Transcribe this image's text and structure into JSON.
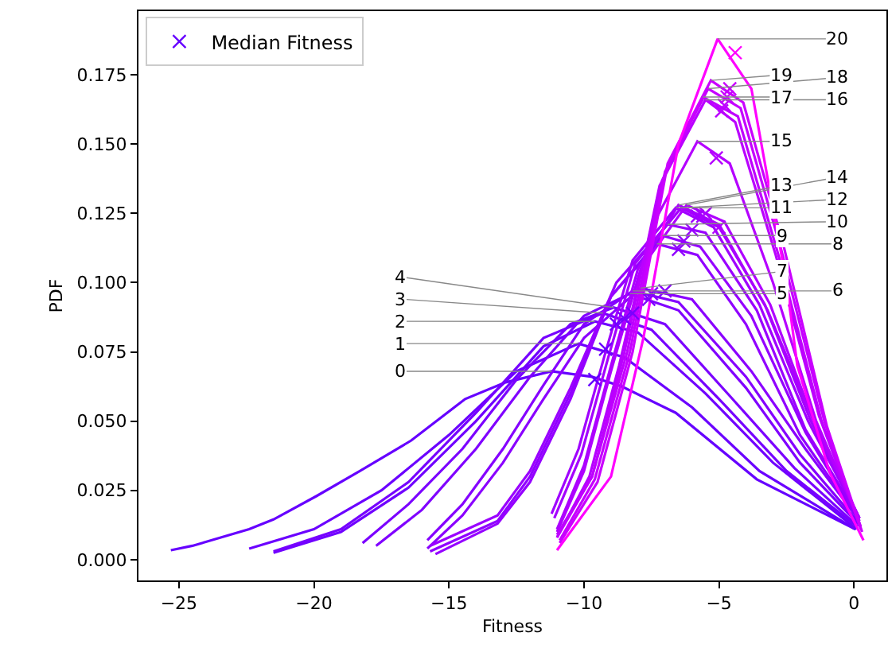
{
  "chart_data": {
    "type": "line",
    "xlabel": "Fitness",
    "ylabel": "PDF",
    "xlim": [
      -26.5,
      1.2
    ],
    "ylim": [
      -0.0075,
      0.198
    ],
    "xticks": [
      {
        "value": -25,
        "label": "−25"
      },
      {
        "value": -20,
        "label": "−20"
      },
      {
        "value": -15,
        "label": "−15"
      },
      {
        "value": -10,
        "label": "−10"
      },
      {
        "value": -5,
        "label": "−5"
      },
      0
    ],
    "yticks": [
      {
        "value": 0,
        "label": "0.000"
      },
      {
        "value": 0.025,
        "label": "0.025"
      },
      {
        "value": 0.05,
        "label": "0.050"
      },
      {
        "value": 0.075,
        "label": "0.075"
      },
      {
        "value": 0.1,
        "label": "0.100"
      },
      {
        "value": 0.125,
        "label": "0.125"
      },
      {
        "value": 0.15,
        "label": "0.150"
      },
      {
        "value": 0.175,
        "label": "0.175"
      }
    ],
    "grid": false,
    "legend": "top left",
    "line_style": "solid",
    "series": [
      {
        "color": "#6600ff",
        "x": [
          -25.3,
          -24.5,
          -22.4,
          -21.5,
          -19.9,
          -18.3,
          -16.4,
          -14.4,
          -12.9,
          -11.2,
          -9.7,
          -8.6,
          -6.6,
          -3.6,
          0.05
        ],
        "values": [
          0.0034,
          0.005,
          0.011,
          0.0145,
          0.023,
          0.032,
          0.043,
          0.058,
          0.064,
          0.068,
          0.066,
          0.0625,
          0.053,
          0.029,
          0.011
        ]
      },
      {
        "color": "#6b00ff",
        "x": [
          -22.4,
          -20,
          -17.5,
          -15,
          -12.5,
          -10.2,
          -8.5,
          -6,
          -3.5,
          0.05
        ],
        "values": [
          0.004,
          0.011,
          0.025,
          0.045,
          0.068,
          0.078,
          0.073,
          0.055,
          0.032,
          0.011
        ]
      },
      {
        "color": "#7000ff",
        "x": [
          -21.5,
          -19,
          -16.5,
          -14,
          -11.5,
          -9.6,
          -8,
          -5.5,
          -3,
          0.1
        ],
        "values": [
          0.0025,
          0.01,
          0.026,
          0.05,
          0.077,
          0.086,
          0.082,
          0.06,
          0.035,
          0.011
        ]
      },
      {
        "color": "#7600ff",
        "x": [
          -21.5,
          -19,
          -16.5,
          -14,
          -11.5,
          -9.3,
          -7.5,
          -5,
          -2.5,
          0.1
        ],
        "values": [
          0.003,
          0.011,
          0.028,
          0.053,
          0.08,
          0.089,
          0.083,
          0.058,
          0.032,
          0.012
        ]
      },
      {
        "color": "#7b00ff",
        "x": [
          -18.2,
          -16.5,
          -14.5,
          -12.5,
          -10.5,
          -8.9,
          -7,
          -4.5,
          -2.2,
          0.15
        ],
        "values": [
          0.006,
          0.02,
          0.04,
          0.065,
          0.085,
          0.091,
          0.085,
          0.058,
          0.033,
          0.012
        ]
      },
      {
        "color": "#8000ff",
        "x": [
          -17.7,
          -16,
          -14,
          -12,
          -10,
          -8.3,
          -6.5,
          -4,
          -2,
          0.15
        ],
        "values": [
          0.005,
          0.018,
          0.04,
          0.066,
          0.088,
          0.096,
          0.09,
          0.062,
          0.035,
          0.013
        ]
      },
      {
        "color": "#8500ff",
        "x": [
          -15.8,
          -14.5,
          -13,
          -11.5,
          -10,
          -8.2,
          -6.5,
          -4,
          -2,
          0.2
        ],
        "values": [
          0.007,
          0.02,
          0.04,
          0.063,
          0.085,
          0.097,
          0.093,
          0.066,
          0.038,
          0.013
        ]
      },
      {
        "color": "#8a00ff",
        "x": [
          -15.8,
          -14.5,
          -13,
          -11.5,
          -10,
          -7.9,
          -6,
          -3.8,
          -1.8,
          0.2
        ],
        "values": [
          0.004,
          0.016,
          0.035,
          0.058,
          0.08,
          0.098,
          0.094,
          0.068,
          0.04,
          0.014
        ]
      },
      {
        "color": "#9000ff",
        "x": [
          -15.7,
          -13.2,
          -12,
          -10.5,
          -9,
          -7.3,
          -5.8,
          -4,
          -2,
          0.2
        ],
        "values": [
          0.003,
          0.014,
          0.03,
          0.06,
          0.095,
          0.114,
          0.11,
          0.085,
          0.045,
          0.014
        ]
      },
      {
        "color": "#9500ff",
        "x": [
          -15.5,
          -13.2,
          -12,
          -10.5,
          -9,
          -7.1,
          -5.7,
          -3.8,
          -1.8,
          0.2
        ],
        "values": [
          0.002,
          0.013,
          0.028,
          0.058,
          0.095,
          0.117,
          0.113,
          0.088,
          0.046,
          0.014
        ]
      },
      {
        "color": "#9a00ff",
        "x": [
          -15.7,
          -13.2,
          -12,
          -10.5,
          -8.8,
          -6.9,
          -5.5,
          -3.6,
          -1.8,
          0.2
        ],
        "values": [
          0.005,
          0.016,
          0.032,
          0.062,
          0.1,
          0.121,
          0.118,
          0.09,
          0.047,
          0.015
        ]
      },
      {
        "color": "#a000ff",
        "x": [
          -11.2,
          -10.2,
          -9.2,
          -8.2,
          -6.6,
          -5.2,
          -3.5,
          -1.7,
          0.2
        ],
        "values": [
          0.0166,
          0.04,
          0.075,
          0.108,
          0.127,
          0.12,
          0.092,
          0.05,
          0.015
        ]
      },
      {
        "color": "#a500ff",
        "x": [
          -11.1,
          -10.1,
          -9.1,
          -8.1,
          -6.4,
          -5,
          -3.3,
          -1.6,
          0.2
        ],
        "values": [
          0.015,
          0.038,
          0.073,
          0.107,
          0.127,
          0.12,
          0.092,
          0.05,
          0.015
        ]
      },
      {
        "color": "#aa00ff",
        "x": [
          -11,
          -10,
          -9,
          -8,
          -6.5,
          -5,
          -3.2,
          -1.5,
          0.2
        ],
        "values": [
          0.011,
          0.034,
          0.07,
          0.105,
          0.128,
          0.121,
          0.09,
          0.05,
          0.015
        ]
      },
      {
        "color": "#af00ff",
        "x": [
          -11,
          -10,
          -9,
          -7.9,
          -6.2,
          -4.8,
          -3.1,
          -1.5,
          0.2
        ],
        "values": [
          0.01,
          0.032,
          0.068,
          0.105,
          0.128,
          0.122,
          0.092,
          0.05,
          0.015
        ]
      },
      {
        "color": "#b500ff",
        "x": [
          -11,
          -9.8,
          -8.7,
          -7.5,
          -5.8,
          -4.6,
          -3,
          -1.4,
          0.2
        ],
        "values": [
          0.008,
          0.03,
          0.07,
          0.12,
          0.151,
          0.143,
          0.1,
          0.05,
          0.014
        ]
      },
      {
        "color": "#ba00ff",
        "x": [
          -11,
          -9.7,
          -8.5,
          -7.2,
          -5.5,
          -4.4,
          -2.9,
          -1.3,
          0.2
        ],
        "values": [
          0.009,
          0.03,
          0.075,
          0.135,
          0.166,
          0.158,
          0.11,
          0.052,
          0.013
        ]
      },
      {
        "color": "#bf00ff",
        "x": [
          -11,
          -9.7,
          -8.4,
          -7.1,
          -5.6,
          -4.3,
          -2.8,
          -1.2,
          0.25
        ],
        "values": [
          0.008,
          0.03,
          0.075,
          0.137,
          0.167,
          0.16,
          0.11,
          0.05,
          0.012
        ]
      },
      {
        "color": "#c500ff",
        "x": [
          -10.9,
          -9.6,
          -8.3,
          -7,
          -5.4,
          -4.2,
          -2.7,
          -1.1,
          0.25
        ],
        "values": [
          0.007,
          0.029,
          0.075,
          0.14,
          0.17,
          0.163,
          0.112,
          0.05,
          0.011
        ]
      },
      {
        "color": "#ca00ff",
        "x": [
          -10.9,
          -9.5,
          -8.2,
          -6.9,
          -5.3,
          -4.1,
          -2.6,
          -1,
          0.3
        ],
        "values": [
          0.006,
          0.028,
          0.075,
          0.143,
          0.173,
          0.165,
          0.113,
          0.048,
          0.01
        ]
      },
      {
        "color": "#ff00ff",
        "x": [
          -11,
          -9,
          -7.8,
          -6.5,
          -5.05,
          -3.8,
          -2.5,
          -2.1,
          -0.9,
          0.35
        ],
        "values": [
          0.0034,
          0.03,
          0.08,
          0.15,
          0.188,
          0.17,
          0.1,
          0.07,
          0.0315,
          0.007
        ]
      },
      {
        "type": "scatter",
        "name": "Median Fitness",
        "marker": "cross",
        "color": "#9900ff",
        "colors": [
          "#6600ff",
          "#6b00ff",
          "#7000ff",
          "#7600ff",
          "#7b00ff",
          "#8000ff",
          "#8500ff",
          "#8a00ff",
          "#9000ff",
          "#9500ff",
          "#9a00ff",
          "#a000ff",
          "#a500ff",
          "#aa00ff",
          "#af00ff",
          "#b500ff",
          "#ba00ff",
          "#bf00ff",
          "#c500ff",
          "#ca00ff",
          "#ff00ff"
        ],
        "x": [
          -9.6,
          -9.2,
          -8.8,
          -8.5,
          -8.2,
          -7.6,
          -7.5,
          -7,
          -6.5,
          -6.3,
          -6,
          -5.8,
          -5.6,
          -5.5,
          -5,
          -5.1,
          -4.9,
          -4.8,
          -4.7,
          -4.6,
          -4.4
        ],
        "values": [
          0.065,
          0.076,
          0.085,
          0.087,
          0.089,
          0.094,
          0.096,
          0.097,
          0.112,
          0.115,
          0.119,
          0.124,
          0.124,
          0.125,
          0.12,
          0.145,
          0.162,
          0.164,
          0.167,
          0.17,
          0.183
        ]
      }
    ],
    "annotations": [
      {
        "text": "0",
        "x": -11.2,
        "y": 0.068
      },
      {
        "text": "1",
        "x": -10.2,
        "y": 0.078
      },
      {
        "text": "2",
        "x": -9.6,
        "y": 0.086
      },
      {
        "text": "3",
        "x": -9.3,
        "y": 0.089
      },
      {
        "text": "4",
        "x": -8.9,
        "y": 0.091
      },
      {
        "text": "5",
        "x": -8.3,
        "y": 0.096
      },
      {
        "text": "6",
        "x": -8.2,
        "y": 0.097
      },
      {
        "text": "7",
        "x": -7.9,
        "y": 0.098
      },
      {
        "text": "8",
        "x": -7.3,
        "y": 0.114
      },
      {
        "text": "9",
        "x": -7.1,
        "y": 0.117
      },
      {
        "text": "10",
        "x": -6.9,
        "y": 0.121
      },
      {
        "text": "11",
        "x": -6.6,
        "y": 0.127
      },
      {
        "text": "12",
        "x": -6.4,
        "y": 0.127
      },
      {
        "text": "13",
        "x": -6.5,
        "y": 0.128
      },
      {
        "text": "14",
        "x": -6.2,
        "y": 0.128
      },
      {
        "text": "15",
        "x": -5.8,
        "y": 0.151
      },
      {
        "text": "16",
        "x": -5.5,
        "y": 0.166
      },
      {
        "text": "17",
        "x": -5.6,
        "y": 0.167
      },
      {
        "text": "18",
        "x": -5.4,
        "y": 0.17
      },
      {
        "text": "19",
        "x": -5.3,
        "y": 0.173
      },
      {
        "text": "20",
        "x": -5.05,
        "y": 0.188
      }
    ]
  }
}
